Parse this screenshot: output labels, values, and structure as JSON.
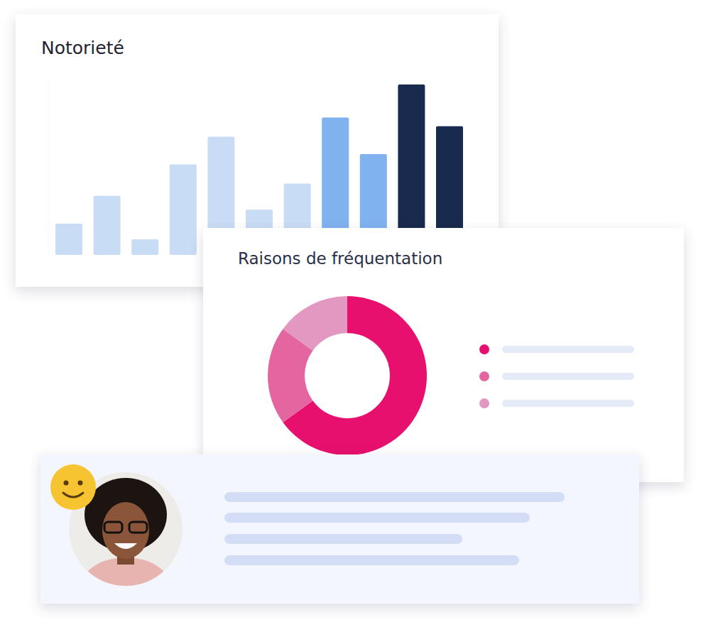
{
  "chart_data": [
    {
      "type": "bar",
      "title": "Notorieté",
      "categories": [
        null,
        null,
        null,
        null,
        null,
        null,
        null,
        null,
        null,
        null,
        null
      ],
      "values": [
        18,
        34,
        9,
        52,
        68,
        26,
        41,
        79,
        58,
        98,
        74
      ],
      "colors": [
        "#c9dcf5",
        "#c9dcf5",
        "#c9dcf5",
        "#c9dcf5",
        "#c9dcf5",
        "#c9dcf5",
        "#c9dcf5",
        "#80b2ef",
        "#80b2ef",
        "#182a4e",
        "#182a4e"
      ],
      "ylim": [
        0,
        100
      ],
      "tick_labels": false
    },
    {
      "type": "pie",
      "title": "Raisons de fréquentation",
      "values": [
        65,
        20,
        15
      ],
      "colors": [
        "#e8106f",
        "#e466a1",
        "#e298c0"
      ]
    }
  ]
}
